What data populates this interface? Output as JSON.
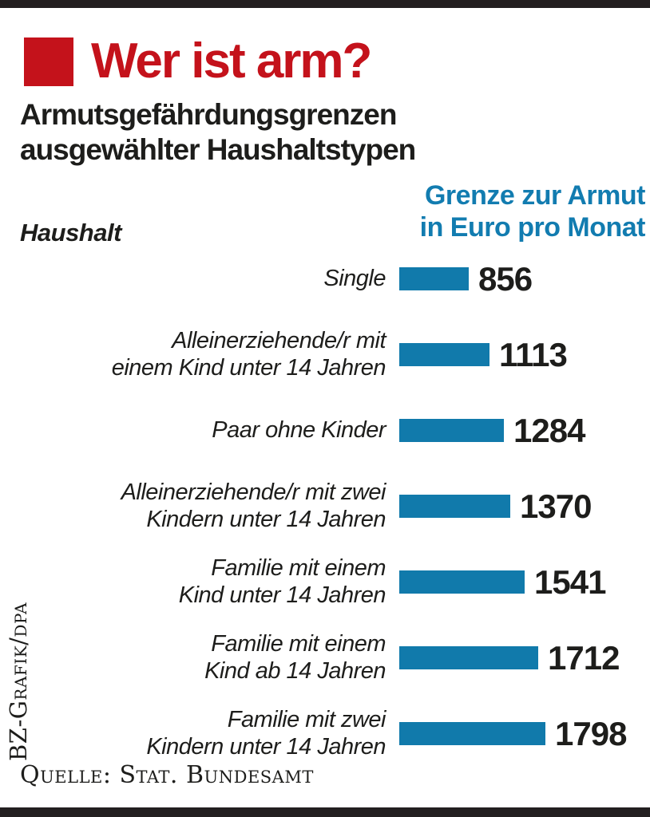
{
  "header": {
    "title": "Wer ist arm?",
    "subtitle": "Armutsgefährdungsgrenzen\nausgewählter Haushaltstypen",
    "household_label": "Haushalt",
    "threshold_label": "Grenze zur Armut\nin Euro pro Monat"
  },
  "chart_data": {
    "type": "bar",
    "orientation": "horizontal",
    "title": "Wer ist arm?",
    "subtitle": "Armutsgefährdungsgrenzen ausgewählter Haushaltstypen",
    "category_axis_label": "Haushalt",
    "value_axis_label": "Grenze zur Armut in Euro pro Monat",
    "unit": "Euro pro Monat",
    "xlim": [
      0,
      1900
    ],
    "grid": false,
    "legend": false,
    "categories": [
      "Single",
      "Alleinerziehende/r mit\neinem Kind unter 14 Jahren",
      "Paar ohne Kinder",
      "Alleinerziehende/r mit zwei\nKindern unter 14 Jahren",
      "Familie mit einem\nKind unter 14 Jahren",
      "Familie mit einem\nKind ab 14 Jahren",
      "Familie mit zwei\nKindern unter 14 Jahren"
    ],
    "values": [
      856,
      1113,
      1284,
      1370,
      1541,
      1712,
      1798
    ]
  },
  "footer": {
    "source": "Quelle: Stat. Bundesamt",
    "credit": "BZ-Grafik/dpa"
  },
  "colors": {
    "accent_red": "#c4121b",
    "bar_blue": "#117aab",
    "heading_blue": "#127cb0",
    "rule_black": "#231f20",
    "text_black": "#1d1d1b"
  }
}
